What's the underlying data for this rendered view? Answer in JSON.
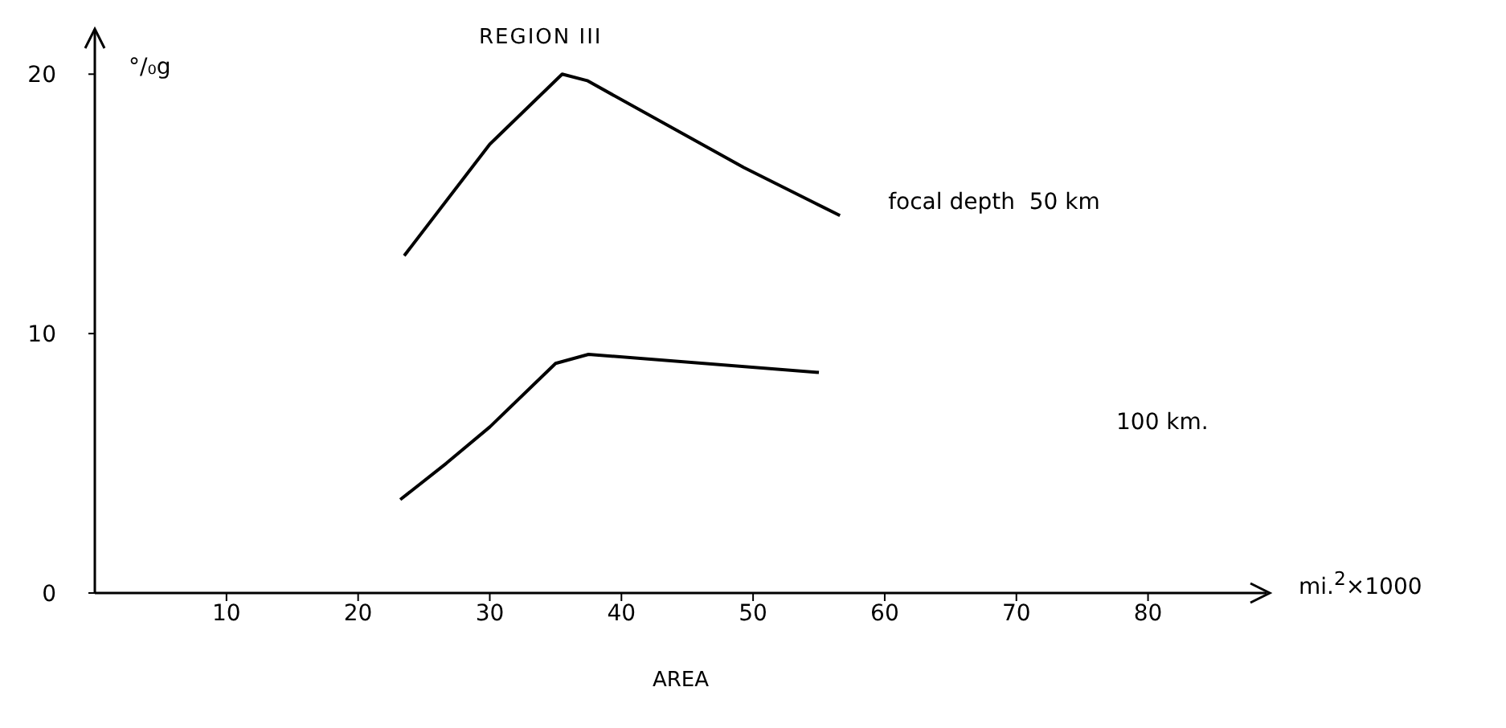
{
  "chart_data": {
    "type": "line",
    "title": "REGION III",
    "xlabel": "AREA",
    "ylabel": "°/₀g",
    "annotations": [
      "mi.$^{2}$×1000"
    ],
    "xlim": [
      0,
      89
    ],
    "ylim": [
      0,
      21
    ],
    "xticks": [
      10,
      20,
      30,
      40,
      50,
      60,
      70,
      80
    ],
    "yticks": [
      0,
      10,
      20
    ],
    "grid": false,
    "legend": false,
    "marker": "none",
    "line_style": "solid",
    "series": [
      {
        "name": "focal depth  50 km",
        "color": "#000000",
        "x": [
          23.5,
          30,
          35.5,
          37.4,
          49.3,
          56.6
        ],
        "values": [
          13.0,
          17.3,
          20.0,
          19.75,
          16.4,
          14.55
        ]
      },
      {
        "name": "100 km.",
        "color": "#000000",
        "x": [
          23.2,
          26.7,
          30,
          35,
          37.5,
          55
        ],
        "values": [
          3.6,
          5.0,
          6.4,
          8.85,
          9.2,
          8.5
        ]
      }
    ]
  }
}
